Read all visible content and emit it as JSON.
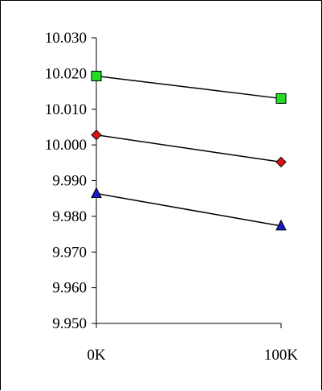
{
  "chart_data": {
    "type": "line",
    "categories": [
      "0K",
      "100K"
    ],
    "y_ticks": [
      "9.950",
      "9.960",
      "9.970",
      "9.980",
      "9.990",
      "10.000",
      "10.010",
      "10.020",
      "10.030"
    ],
    "ylim": [
      9.95,
      10.03
    ],
    "grid": false,
    "legend": "none",
    "series": [
      {
        "marker": "square",
        "color": "#22dd22",
        "values": [
          10.0193,
          10.013
        ]
      },
      {
        "marker": "diamond",
        "color": "#dd1111",
        "values": [
          10.0028,
          9.9952
        ]
      },
      {
        "marker": "triangle",
        "color": "#1a1acc",
        "values": [
          9.9864,
          9.9773
        ]
      }
    ]
  }
}
